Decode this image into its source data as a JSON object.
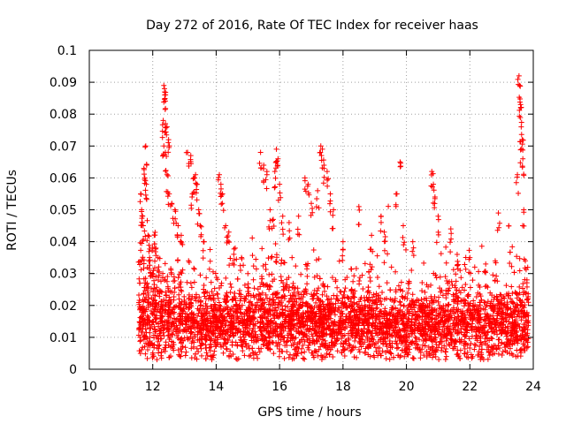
{
  "chart_data": {
    "type": "scatter",
    "title": "Day 272 of 2016, Rate Of TEC Index for receiver haas",
    "xlabel": "GPS time / hours",
    "ylabel": "ROTI / TECUs",
    "xlim": [
      10,
      24
    ],
    "ylim": [
      0,
      0.1
    ],
    "x_ticks": [
      10,
      12,
      14,
      16,
      18,
      20,
      22,
      24
    ],
    "y_ticks": [
      0,
      0.01,
      0.02,
      0.03,
      0.04,
      0.05,
      0.06,
      0.07,
      0.08,
      0.09,
      0.1
    ],
    "x_tick_labels": [
      "10",
      "12",
      "14",
      "16",
      "18",
      "20",
      "22",
      "24"
    ],
    "y_tick_labels": [
      "0",
      "0.01",
      "0.02",
      "0.03",
      "0.04",
      "0.05",
      "0.06",
      "0.07",
      "0.08",
      "0.09",
      "0.1"
    ],
    "grid": true,
    "marker": "+",
    "series": [
      {
        "name": "ROTI",
        "color": "#ff0000",
        "points": [
          [
            11.6,
            0.01
          ],
          [
            11.62,
            0.055
          ],
          [
            11.65,
            0.05
          ],
          [
            11.68,
            0.048
          ],
          [
            11.7,
            0.045
          ],
          [
            11.72,
            0.063
          ],
          [
            11.75,
            0.06
          ],
          [
            11.78,
            0.07
          ],
          [
            11.8,
            0.058
          ],
          [
            11.85,
            0.042
          ],
          [
            11.9,
            0.035
          ],
          [
            12.0,
            0.03
          ],
          [
            12.1,
            0.038
          ],
          [
            12.35,
            0.089
          ],
          [
            12.37,
            0.088
          ],
          [
            12.38,
            0.086
          ],
          [
            12.33,
            0.078
          ],
          [
            12.4,
            0.077
          ],
          [
            12.45,
            0.076
          ],
          [
            12.5,
            0.072
          ],
          [
            12.35,
            0.07
          ],
          [
            12.4,
            0.068
          ],
          [
            12.45,
            0.061
          ],
          [
            12.5,
            0.055
          ],
          [
            12.6,
            0.052
          ],
          [
            12.7,
            0.05
          ],
          [
            12.8,
            0.045
          ],
          [
            12.9,
            0.042
          ],
          [
            13.1,
            0.068
          ],
          [
            13.2,
            0.067
          ],
          [
            13.25,
            0.055
          ],
          [
            13.3,
            0.06
          ],
          [
            13.35,
            0.061
          ],
          [
            13.4,
            0.058
          ],
          [
            13.45,
            0.05
          ],
          [
            13.5,
            0.045
          ],
          [
            13.6,
            0.04
          ],
          [
            14.1,
            0.061
          ],
          [
            14.15,
            0.058
          ],
          [
            14.2,
            0.055
          ],
          [
            14.3,
            0.045
          ],
          [
            14.4,
            0.043
          ],
          [
            14.6,
            0.038
          ],
          [
            14.8,
            0.035
          ],
          [
            15.0,
            0.03
          ],
          [
            15.4,
            0.068
          ],
          [
            15.5,
            0.064
          ],
          [
            15.6,
            0.062
          ],
          [
            15.7,
            0.05
          ],
          [
            15.8,
            0.047
          ],
          [
            15.9,
            0.069
          ],
          [
            15.95,
            0.066
          ],
          [
            15.85,
            0.062
          ],
          [
            16.0,
            0.058
          ],
          [
            16.1,
            0.048
          ],
          [
            16.3,
            0.046
          ],
          [
            16.6,
            0.048
          ],
          [
            16.8,
            0.06
          ],
          [
            16.9,
            0.058
          ],
          [
            17.0,
            0.052
          ],
          [
            17.2,
            0.056
          ],
          [
            17.3,
            0.07
          ],
          [
            17.35,
            0.069
          ],
          [
            17.4,
            0.064
          ],
          [
            17.5,
            0.062
          ],
          [
            17.6,
            0.055
          ],
          [
            17.7,
            0.05
          ],
          [
            18.0,
            0.04
          ],
          [
            18.5,
            0.051
          ],
          [
            18.9,
            0.042
          ],
          [
            19.2,
            0.048
          ],
          [
            19.3,
            0.043
          ],
          [
            19.8,
            0.065
          ],
          [
            19.7,
            0.055
          ],
          [
            19.9,
            0.045
          ],
          [
            20.2,
            0.04
          ],
          [
            20.8,
            0.062
          ],
          [
            20.85,
            0.058
          ],
          [
            20.9,
            0.054
          ],
          [
            21.0,
            0.048
          ],
          [
            21.4,
            0.044
          ],
          [
            21.6,
            0.036
          ],
          [
            22.0,
            0.035
          ],
          [
            22.5,
            0.033
          ],
          [
            22.9,
            0.049
          ],
          [
            23.5,
            0.061
          ],
          [
            23.55,
            0.092
          ],
          [
            23.57,
            0.089
          ],
          [
            23.6,
            0.083
          ],
          [
            23.6,
            0.082
          ],
          [
            23.62,
            0.076
          ],
          [
            23.65,
            0.072
          ],
          [
            23.63,
            0.069
          ],
          [
            23.67,
            0.066
          ],
          [
            23.7,
            0.05
          ],
          [
            23.75,
            0.034
          ],
          [
            23.8,
            0.028
          ]
        ]
      }
    ],
    "dense_band": {
      "note": "Dense cloud of ROTI values between about 11.55 h and 23.85 h, mostly 0.004 to 0.03 TECU/min",
      "x_range": [
        11.55,
        23.85
      ],
      "y_median": 0.014,
      "y_spread": 0.01
    }
  }
}
